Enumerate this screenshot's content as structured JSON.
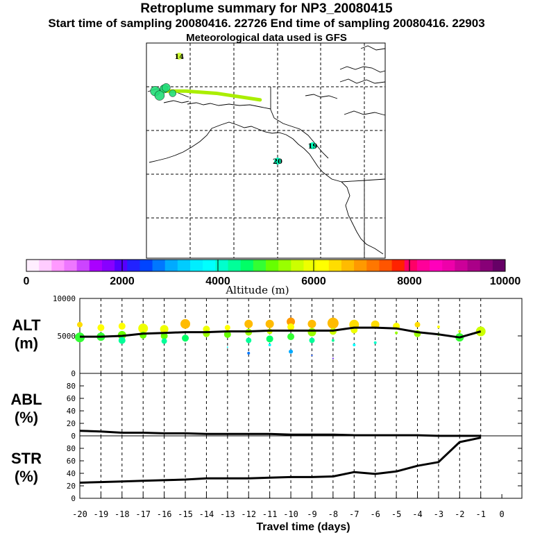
{
  "titles": {
    "line1": "Retroplume summary for NP3_20080415",
    "line2": "Start time of sampling 20080416. 22726     End time of sampling 20080416. 22903",
    "line3": "Meteorological data used is GFS"
  },
  "map": {
    "day_markers": [
      {
        "label": "14",
        "lon": -172.5,
        "lat": 72.0,
        "color": "#ccff33"
      },
      {
        "label": "19",
        "lon": -142.0,
        "lat": 51.5,
        "color": "#00ffbb"
      },
      {
        "label": "20",
        "lon": -150.0,
        "lat": 48.0,
        "color": "#00ffbb"
      }
    ],
    "trajectory": {
      "color": "#aaee00",
      "points": [
        [
          -176,
          64.0
        ],
        [
          -171,
          64.0
        ],
        [
          -164,
          63.5
        ],
        [
          -154,
          62.0
        ]
      ]
    },
    "cluster_color": "#22dd77"
  },
  "colorbar": {
    "min": 0,
    "max": 10000,
    "tick_labels": [
      "0",
      "2000",
      "4000",
      "6000",
      "8000",
      "10000"
    ],
    "label": "Altitude (m)",
    "colors": [
      "#ffeeff",
      "#ffccff",
      "#ff99ff",
      "#ee77ff",
      "#cc44ff",
      "#aa00ff",
      "#8800ff",
      "#5500ff",
      "#2222ff",
      "#0044ff",
      "#0077ff",
      "#00aaff",
      "#00ccff",
      "#00eeff",
      "#00ffff",
      "#00ffcc",
      "#00ff99",
      "#00ff66",
      "#33ff33",
      "#66ff00",
      "#99ff00",
      "#ccff00",
      "#eeff00",
      "#ffff00",
      "#ffdd00",
      "#ffbb00",
      "#ff9900",
      "#ff7700",
      "#ff5500",
      "#ff2200",
      "#ff0066",
      "#ff0099",
      "#ff00bb",
      "#ee00aa",
      "#cc0099",
      "#aa0088",
      "#880077",
      "#660066"
    ]
  },
  "chart_data": [
    {
      "type": "line",
      "title": "ALT (m)",
      "ylim": [
        0,
        10000
      ],
      "ytick_labels": [
        "0",
        "5000",
        "10000"
      ],
      "x": [
        -20,
        -19,
        -18,
        -17,
        -16,
        -15,
        -14,
        -13,
        -12,
        -11,
        -10,
        -9,
        -8,
        -7,
        -6,
        -5,
        -4,
        -3,
        -2,
        -1
      ],
      "series": [
        {
          "name": "median altitude",
          "values": [
            4900,
            4900,
            5000,
            5300,
            5400,
            5500,
            5500,
            5600,
            5600,
            5700,
            5700,
            5700,
            5700,
            6100,
            6100,
            6000,
            5500,
            5200,
            4800,
            5600
          ]
        }
      ],
      "scatter": [
        {
          "x": -20,
          "y": 6500,
          "s": 4
        },
        {
          "x": -20,
          "y": 4800,
          "s": 7
        },
        {
          "x": -19,
          "y": 6100,
          "s": 5
        },
        {
          "x": -19,
          "y": 4900,
          "s": 6
        },
        {
          "x": -18,
          "y": 6300,
          "s": 5
        },
        {
          "x": -18,
          "y": 5100,
          "s": 6
        },
        {
          "x": -18,
          "y": 4400,
          "s": 5
        },
        {
          "x": -17,
          "y": 6000,
          "s": 7
        },
        {
          "x": -17,
          "y": 5100,
          "s": 5
        },
        {
          "x": -16,
          "y": 5900,
          "s": 6
        },
        {
          "x": -16,
          "y": 5000,
          "s": 5
        },
        {
          "x": -16,
          "y": 4300,
          "s": 4
        },
        {
          "x": -15,
          "y": 6600,
          "s": 7
        },
        {
          "x": -15,
          "y": 4700,
          "s": 5
        },
        {
          "x": -14,
          "y": 5900,
          "s": 5
        },
        {
          "x": -14,
          "y": 5300,
          "s": 5
        },
        {
          "x": -13,
          "y": 6100,
          "s": 4
        },
        {
          "x": -13,
          "y": 5200,
          "s": 5
        },
        {
          "x": -13,
          "y": 3500,
          "s": 1
        },
        {
          "x": -12,
          "y": 6600,
          "s": 6
        },
        {
          "x": -12,
          "y": 5500,
          "s": 5
        },
        {
          "x": -12,
          "y": 4400,
          "s": 4
        },
        {
          "x": -12,
          "y": 2700,
          "s": 2
        },
        {
          "x": -11,
          "y": 6600,
          "s": 6
        },
        {
          "x": -11,
          "y": 5600,
          "s": 4
        },
        {
          "x": -11,
          "y": 4600,
          "s": 5
        },
        {
          "x": -11,
          "y": 3800,
          "s": 2
        },
        {
          "x": -10,
          "y": 6900,
          "s": 6
        },
        {
          "x": -10,
          "y": 6200,
          "s": 5
        },
        {
          "x": -10,
          "y": 4900,
          "s": 5
        },
        {
          "x": -10,
          "y": 2900,
          "s": 3
        },
        {
          "x": -9,
          "y": 6600,
          "s": 6
        },
        {
          "x": -9,
          "y": 5500,
          "s": 6
        },
        {
          "x": -9,
          "y": 4400,
          "s": 4
        },
        {
          "x": -9,
          "y": 2400,
          "s": 1
        },
        {
          "x": -8,
          "y": 6700,
          "s": 8
        },
        {
          "x": -8,
          "y": 5600,
          "s": 5
        },
        {
          "x": -8,
          "y": 4400,
          "s": 2
        },
        {
          "x": -8,
          "y": 2000,
          "s": 1
        },
        {
          "x": -7,
          "y": 6500,
          "s": 7
        },
        {
          "x": -7,
          "y": 5800,
          "s": 5
        },
        {
          "x": -7,
          "y": 3800,
          "s": 2
        },
        {
          "x": -6,
          "y": 6500,
          "s": 6
        },
        {
          "x": -6,
          "y": 4100,
          "s": 2
        },
        {
          "x": -5,
          "y": 6300,
          "s": 5
        },
        {
          "x": -5,
          "y": 5400,
          "s": 2
        },
        {
          "x": -4,
          "y": 6500,
          "s": 4
        },
        {
          "x": -4,
          "y": 5300,
          "s": 5
        },
        {
          "x": -3,
          "y": 6200,
          "s": 2
        },
        {
          "x": -3,
          "y": 5200,
          "s": 2
        },
        {
          "x": -2,
          "y": 4800,
          "s": 6
        },
        {
          "x": -2,
          "y": 5600,
          "s": 2
        },
        {
          "x": -1,
          "y": 5600,
          "s": 7
        }
      ]
    },
    {
      "type": "line",
      "title": "ABL (%)",
      "ylim": [
        0,
        100
      ],
      "ytick_labels": [
        "0",
        "20",
        "40",
        "60",
        "80"
      ],
      "x": [
        -20,
        -19,
        -18,
        -17,
        -16,
        -15,
        -14,
        -13,
        -12,
        -11,
        -10,
        -9,
        -8,
        -7,
        -6,
        -5,
        -4,
        -3,
        -2,
        -1
      ],
      "series": [
        {
          "name": "ABL fraction",
          "values": [
            8,
            7,
            5,
            5,
            4,
            4,
            3,
            3,
            3,
            3,
            2,
            2,
            2,
            1,
            1,
            1,
            1,
            0,
            0,
            0
          ]
        }
      ]
    },
    {
      "type": "line",
      "title": "STR (%)",
      "ylim": [
        0,
        100
      ],
      "ytick_labels": [
        "0",
        "20",
        "40",
        "60",
        "80"
      ],
      "xlabel": "Travel time (days)",
      "xtick_labels": [
        "-20",
        "-19",
        "-18",
        "-17",
        "-16",
        "-15",
        "-14",
        "-13",
        "-12",
        "-11",
        "-10",
        "-9",
        "-8",
        "-7",
        "-6",
        "-5",
        "-4",
        "-3",
        "-2",
        "-1",
        "0"
      ],
      "x": [
        -20,
        -19,
        -18,
        -17,
        -16,
        -15,
        -14,
        -13,
        -12,
        -11,
        -10,
        -9,
        -8,
        -7,
        -6,
        -5,
        -4,
        -3,
        -2,
        -1
      ],
      "series": [
        {
          "name": "stratospheric fraction",
          "values": [
            25,
            26,
            27,
            28,
            29,
            30,
            32,
            32,
            32,
            33,
            34,
            34,
            35,
            42,
            39,
            43,
            52,
            58,
            90,
            97
          ]
        }
      ]
    }
  ]
}
